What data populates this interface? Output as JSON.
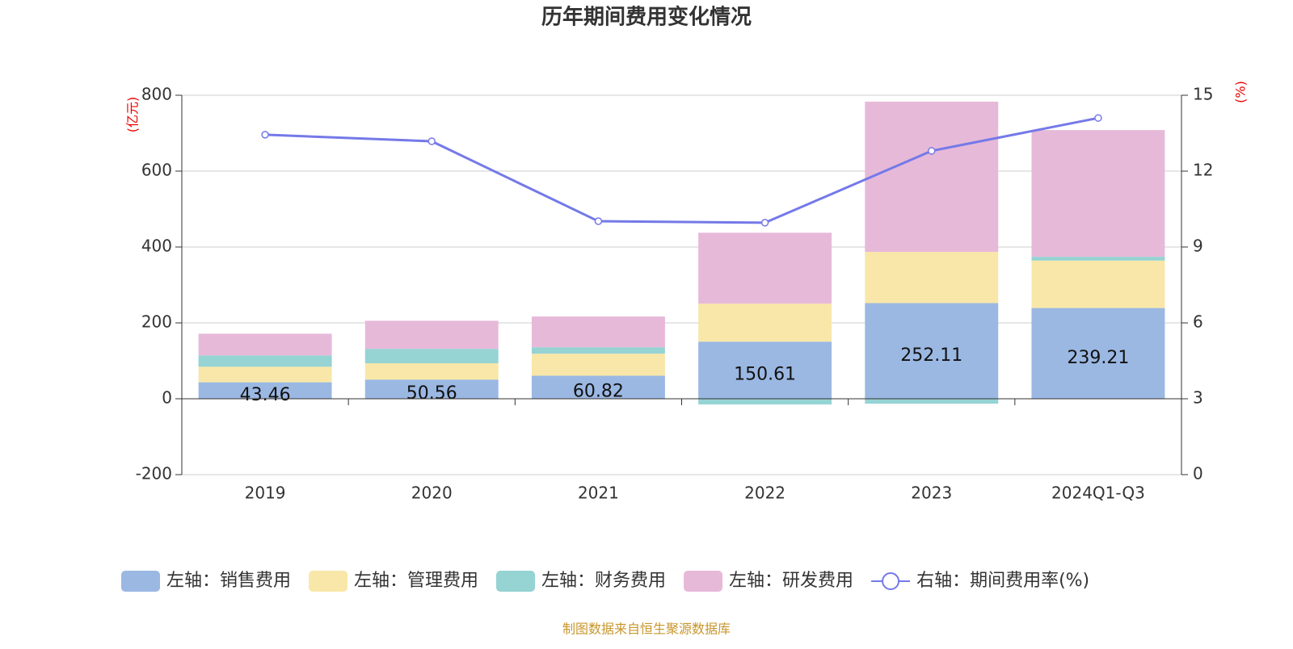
{
  "chart_data": {
    "type": "bar",
    "title": "历年期间费用变化情况",
    "ylabel": "(亿元)",
    "y2label": "(%)",
    "categories": [
      "2019",
      "2020",
      "2021",
      "2022",
      "2023",
      "2024Q1-Q3"
    ],
    "series": [
      {
        "name": "左轴：销售费用",
        "color": "#9bb8e3",
        "values": [
          43.46,
          50.56,
          60.82,
          150.61,
          252.11,
          239.21
        ],
        "data_labels": true
      },
      {
        "name": "左轴：管理费用",
        "color": "#f8e7a8",
        "values": [
          41,
          43,
          58,
          100,
          135,
          125
        ]
      },
      {
        "name": "左轴：财务费用",
        "color": "#96d3d3",
        "values": [
          30,
          38,
          17,
          -15,
          -13,
          10
        ]
      },
      {
        "name": "左轴：研发费用",
        "color": "#e7b9d9",
        "values": [
          57,
          74,
          81,
          187,
          396,
          334
        ]
      },
      {
        "name": "右轴：期间费用率(%)",
        "color": "#7479e8",
        "type": "line",
        "axis": "y2",
        "values": [
          13.44,
          13.18,
          10.02,
          9.96,
          12.8,
          14.1
        ]
      }
    ],
    "stacked": true,
    "ylim": [
      -200,
      800
    ],
    "yticks": [
      -200,
      0,
      200,
      400,
      600,
      800
    ],
    "y2lim": [
      0,
      15
    ],
    "y2ticks": [
      0,
      3,
      6,
      9,
      12,
      15
    ],
    "grid": true,
    "legend": "bottom",
    "source": "制图数据来自恒生聚源数据库"
  }
}
